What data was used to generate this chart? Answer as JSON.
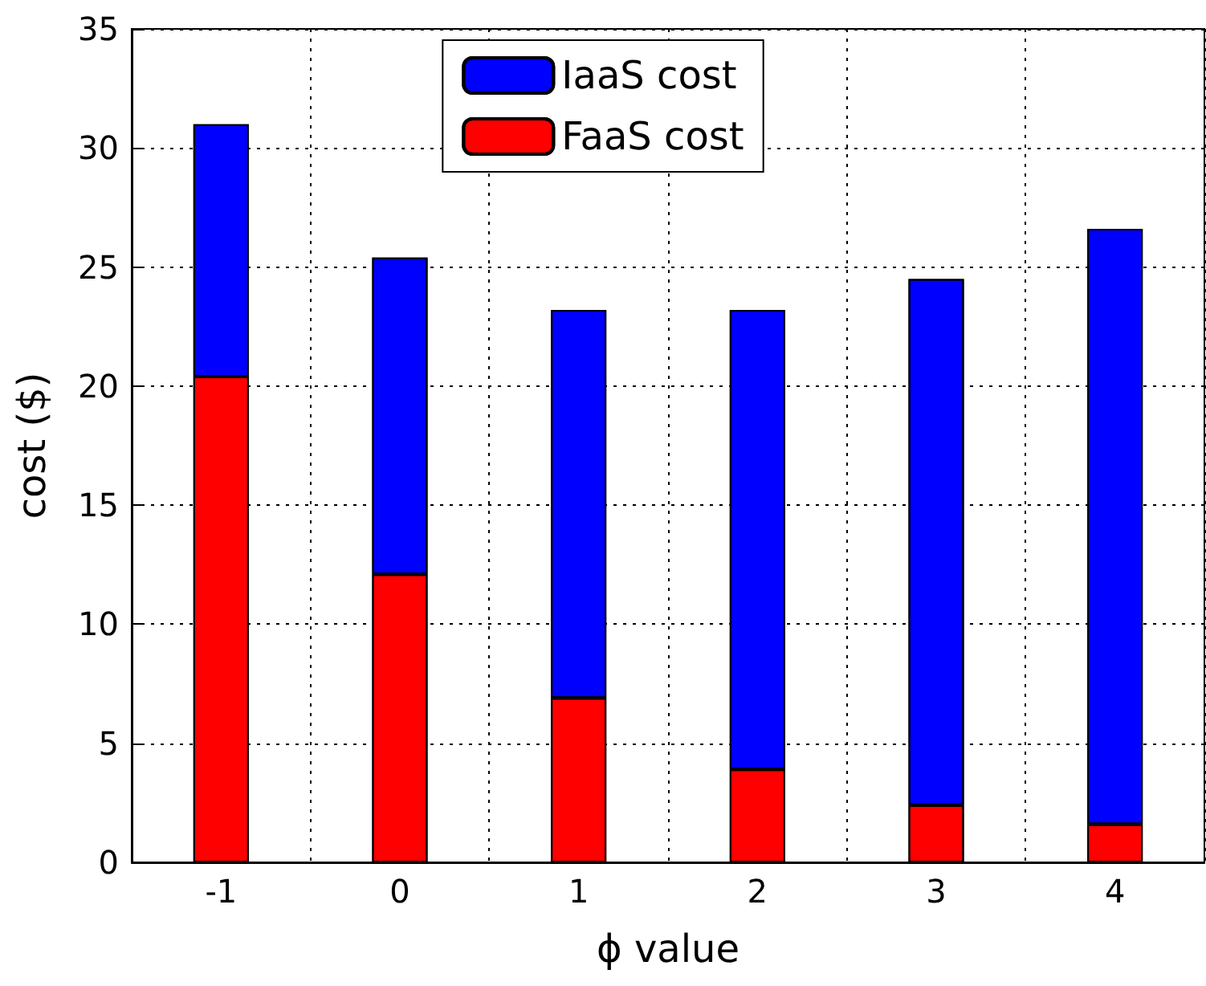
{
  "chart_data": {
    "type": "bar",
    "stacked": true,
    "xlabel": "ϕ value",
    "ylabel": "cost ($)",
    "categories": [
      "-1",
      "0",
      "1",
      "2",
      "3",
      "4"
    ],
    "series": [
      {
        "name": "FaaS cost",
        "color": "#ff0000",
        "values": [
          20.4,
          12.1,
          6.9,
          3.9,
          2.4,
          1.6
        ]
      },
      {
        "name": "IaaS cost",
        "color": "#0000ff",
        "values": [
          10.6,
          13.3,
          16.3,
          19.3,
          22.1,
          25.0
        ]
      }
    ],
    "ylim": [
      0,
      35
    ],
    "yticks": [
      0,
      5,
      10,
      15,
      20,
      25,
      30,
      35
    ],
    "grid": true,
    "legend": "top"
  }
}
